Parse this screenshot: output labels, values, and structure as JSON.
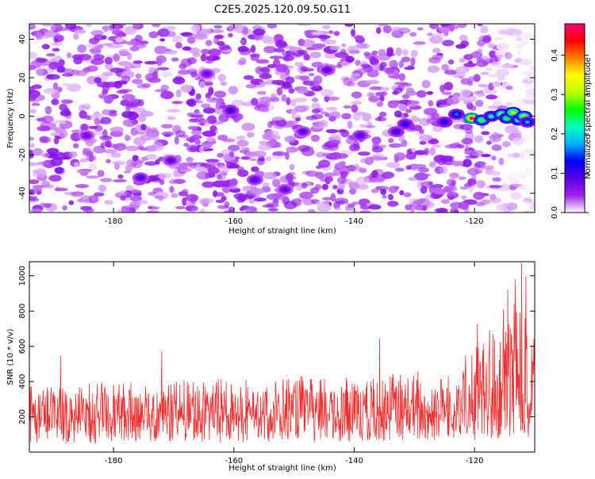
{
  "title": "C2E5.2025.120.09.50.G11",
  "chart_data": [
    {
      "type": "heatmap",
      "xlabel": "Height of straight line (km)",
      "ylabel": "Frequency (Hz)",
      "xlim": [
        -194,
        -110
      ],
      "ylim": [
        -50,
        48
      ],
      "x_ticks": [
        -180,
        -160,
        -140,
        -120
      ],
      "x_tick_labels": [
        "-180",
        "-160",
        "-140",
        "-120"
      ],
      "y_ticks": [
        -40,
        -20,
        0,
        20,
        40
      ],
      "y_tick_labels": [
        "-40",
        "-20",
        "0",
        "20",
        "40"
      ],
      "colorbar": {
        "label": "Normalized spectral amplitude",
        "range": [
          0,
          0.48
        ],
        "ticks": [
          0.0,
          0.1,
          0.2,
          0.3,
          0.4
        ],
        "tick_labels": [
          "0.0",
          "0.1",
          "0.2",
          "0.3",
          "0.4"
        ],
        "colormap": [
          "#ffffff",
          "#a020f0",
          "#5a00e0",
          "#0000ff",
          "#00b0ff",
          "#00ffc0",
          "#00ff00",
          "#c0ff00",
          "#ffff00",
          "#ff8000",
          "#ff0000",
          "#ff0080"
        ]
      },
      "background_level": 0.04,
      "hotspots": [
        {
          "x": -120.5,
          "y": -1,
          "value": 0.46
        },
        {
          "x": -118.8,
          "y": -2,
          "value": 0.28
        },
        {
          "x": -117.2,
          "y": 0,
          "value": 0.22
        },
        {
          "x": -115.5,
          "y": 1,
          "value": 0.3
        },
        {
          "x": -114.6,
          "y": -1,
          "value": 0.26
        },
        {
          "x": -113.6,
          "y": 2,
          "value": 0.34
        },
        {
          "x": -112.7,
          "y": -2,
          "value": 0.24
        },
        {
          "x": -111.8,
          "y": 0,
          "value": 0.3
        },
        {
          "x": -111.2,
          "y": -3,
          "value": 0.18
        },
        {
          "x": -123.0,
          "y": 1,
          "value": 0.16
        },
        {
          "x": -125.0,
          "y": -3,
          "value": 0.13
        },
        {
          "x": -131.5,
          "y": -4,
          "value": 0.12
        },
        {
          "x": -133.0,
          "y": -8,
          "value": 0.11
        },
        {
          "x": -139.0,
          "y": -10,
          "value": 0.1
        },
        {
          "x": -160.5,
          "y": 3,
          "value": 0.11
        },
        {
          "x": -175.5,
          "y": -32,
          "value": 0.1
        },
        {
          "x": -156.5,
          "y": -33,
          "value": 0.1
        },
        {
          "x": -170.5,
          "y": -23,
          "value": 0.09
        },
        {
          "x": -148.5,
          "y": -8,
          "value": 0.09
        },
        {
          "x": -144.5,
          "y": 24,
          "value": 0.09
        },
        {
          "x": -184.5,
          "y": -10,
          "value": 0.08
        },
        {
          "x": -151.5,
          "y": -38,
          "value": 0.09
        },
        {
          "x": -164.5,
          "y": 22,
          "value": 0.08
        }
      ]
    },
    {
      "type": "line",
      "xlabel": "Height of straight line (km)",
      "ylabel": "SNR (10 * v/v)",
      "xlim": [
        -194,
        -110
      ],
      "ylim": [
        0,
        1080
      ],
      "x_ticks": [
        -180,
        -160,
        -140,
        -120
      ],
      "x_tick_labels": [
        "-180",
        "-160",
        "-140",
        "-120"
      ],
      "y_ticks": [
        200,
        400,
        600,
        800,
        1000
      ],
      "y_tick_labels": [
        "200",
        "400",
        "600",
        "800",
        "1000"
      ],
      "color": "#f03030",
      "series": [
        {
          "x_start": -194,
          "x_end": -110,
          "samples": 1200,
          "envelope": [
            {
              "x": -194,
              "baseline": 170,
              "peak": 380
            },
            {
              "x": -180,
              "baseline": 175,
              "peak": 400
            },
            {
              "x": -160,
              "baseline": 180,
              "peak": 420
            },
            {
              "x": -140,
              "baseline": 185,
              "peak": 440
            },
            {
              "x": -125,
              "baseline": 195,
              "peak": 480
            },
            {
              "x": -120,
              "baseline": 210,
              "peak": 600
            },
            {
              "x": -116,
              "baseline": 240,
              "peak": 780
            },
            {
              "x": -113,
              "baseline": 260,
              "peak": 950
            },
            {
              "x": -110,
              "baseline": 230,
              "peak": 700
            }
          ],
          "spikes": [
            {
              "x": -188.8,
              "y": 545
            },
            {
              "x": -172.0,
              "y": 570
            },
            {
              "x": -135.8,
              "y": 645
            },
            {
              "x": -119.5,
              "y": 730
            },
            {
              "x": -114.5,
              "y": 920
            },
            {
              "x": -113.2,
              "y": 980
            },
            {
              "x": -112.2,
              "y": 1075
            },
            {
              "x": -111.5,
              "y": 1000
            }
          ]
        }
      ]
    }
  ]
}
